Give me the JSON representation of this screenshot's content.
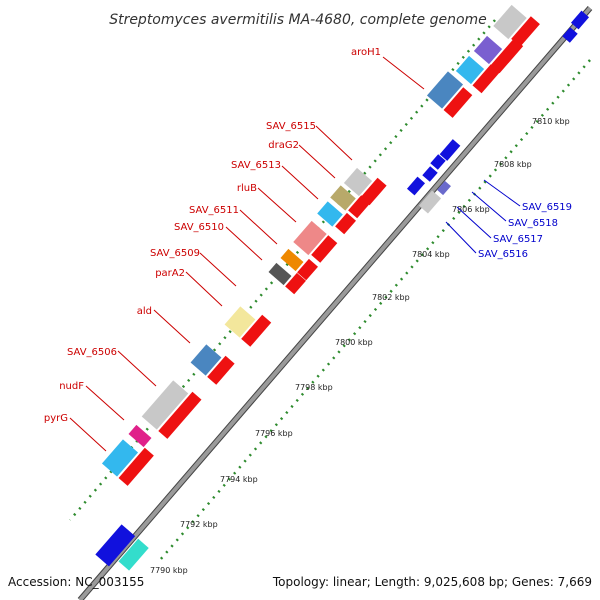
{
  "title": "Streptomyces avermitilis MA-4680, complete genome",
  "footer": {
    "accession": "Accession: NC_003155",
    "summary": "Topology: linear; Length: 9,025,608 bp; Genes: 7,669"
  },
  "ticks": [
    "7790 kbp",
    "7792 kbp",
    "7794 kbp",
    "7796 kbp",
    "7798 kbp",
    "7800 kbp",
    "7802 kbp",
    "7804 kbp",
    "7806 kbp",
    "7808 kbp",
    "7810 kbp"
  ],
  "labels_left": [
    "aroH1",
    "SAV_6515",
    "draG2",
    "SAV_6513",
    "rluB",
    "SAV_6511",
    "SAV_6510",
    "SAV_6509",
    "parA2",
    "ald",
    "SAV_6506",
    "nudF",
    "pyrG"
  ],
  "labels_right": [
    "SAV_6519",
    "SAV_6518",
    "SAV_6517",
    "SAV_6516"
  ],
  "colors": {
    "strand": "#8c8c8c",
    "dots": "#2e8b2e",
    "cds": "#ee1111",
    "blue_cds": "#1111dd",
    "label_red": "#cc0000",
    "label_blue": "#0000cc"
  }
}
